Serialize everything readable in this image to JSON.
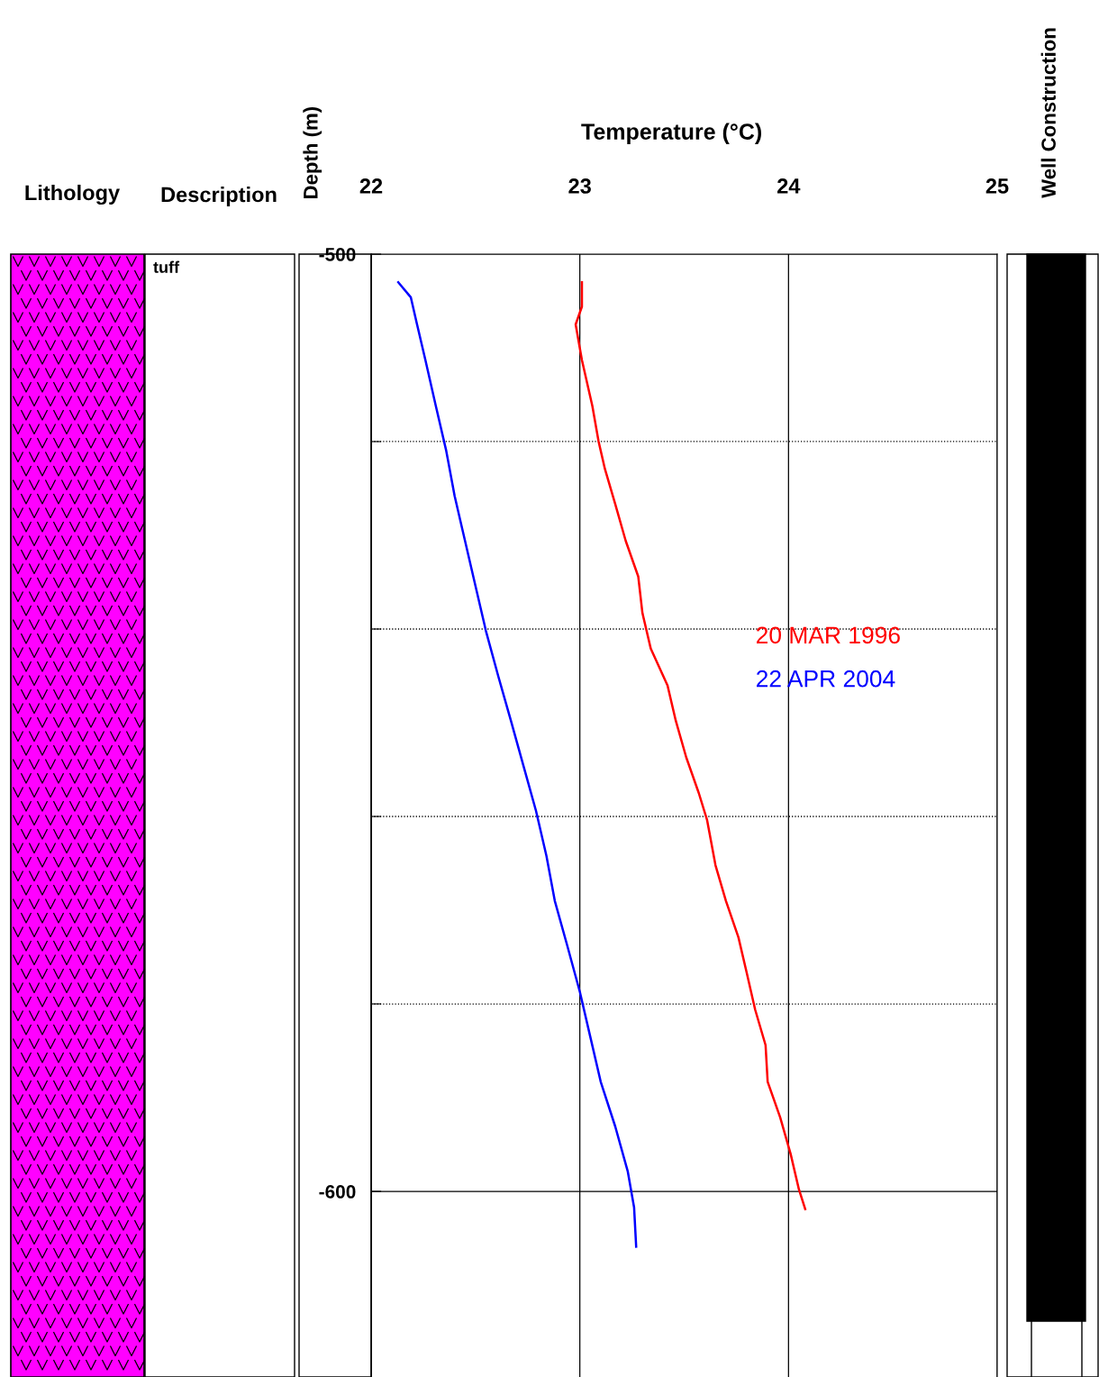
{
  "chart_data": {
    "type": "line",
    "xlabel": "Temperature (°C)",
    "ylabel": "Depth (m)",
    "xlim": [
      22,
      25
    ],
    "xticks": [
      22,
      23,
      24,
      25
    ],
    "ylim": [
      -620,
      -500
    ],
    "yticks": [
      -500,
      {
        "value": -520,
        "label": null
      },
      {
        "value": -540,
        "label": null
      },
      {
        "value": -560,
        "label": null
      },
      {
        "value": -580,
        "label": null
      },
      -600
    ],
    "grid": true,
    "legend": "right",
    "marker": "none",
    "line_style": "solid",
    "annotations": [
      "Lithology",
      "Description",
      "tuff",
      "Well Construction"
    ],
    "series": [
      {
        "name": "20 MAR 1996",
        "color": "#ff0000",
        "x": [
          23.01,
          23.01,
          22.98,
          23.01,
          23.06,
          23.09,
          23.12,
          23.17,
          23.22,
          23.28,
          23.3,
          23.34,
          23.42,
          23.46,
          23.51,
          23.57,
          23.61,
          23.65,
          23.7,
          23.76,
          23.8,
          23.84,
          23.89,
          23.9,
          23.96,
          24.01,
          24.05,
          24.08
        ],
        "values": [
          -503.0,
          -505.6,
          -507.5,
          -511.3,
          -516.2,
          -520.0,
          -522.9,
          -526.7,
          -530.6,
          -534.4,
          -538.3,
          -542.1,
          -546.0,
          -549.8,
          -553.7,
          -557.5,
          -560.4,
          -565.2,
          -569.0,
          -572.9,
          -576.7,
          -580.6,
          -584.4,
          -588.3,
          -592.1,
          -596.0,
          -599.8,
          -601.9
        ]
      },
      {
        "name": "22 APR 2004",
        "color": "#0000ff",
        "x": [
          22.13,
          22.19,
          22.22,
          22.26,
          22.31,
          22.36,
          22.4,
          22.45,
          22.5,
          22.55,
          22.61,
          22.67,
          22.73,
          22.79,
          22.84,
          22.88,
          22.94,
          23.0,
          23.05,
          23.1,
          23.17,
          23.23,
          23.26,
          23.27
        ],
        "values": [
          -503.0,
          -504.6,
          -507.5,
          -511.3,
          -516.2,
          -521.0,
          -525.8,
          -530.6,
          -535.4,
          -540.2,
          -545.1,
          -549.8,
          -554.6,
          -559.4,
          -564.2,
          -569.0,
          -573.8,
          -578.7,
          -583.5,
          -588.3,
          -593.1,
          -597.9,
          -601.7,
          -605.9
        ]
      }
    ]
  }
}
